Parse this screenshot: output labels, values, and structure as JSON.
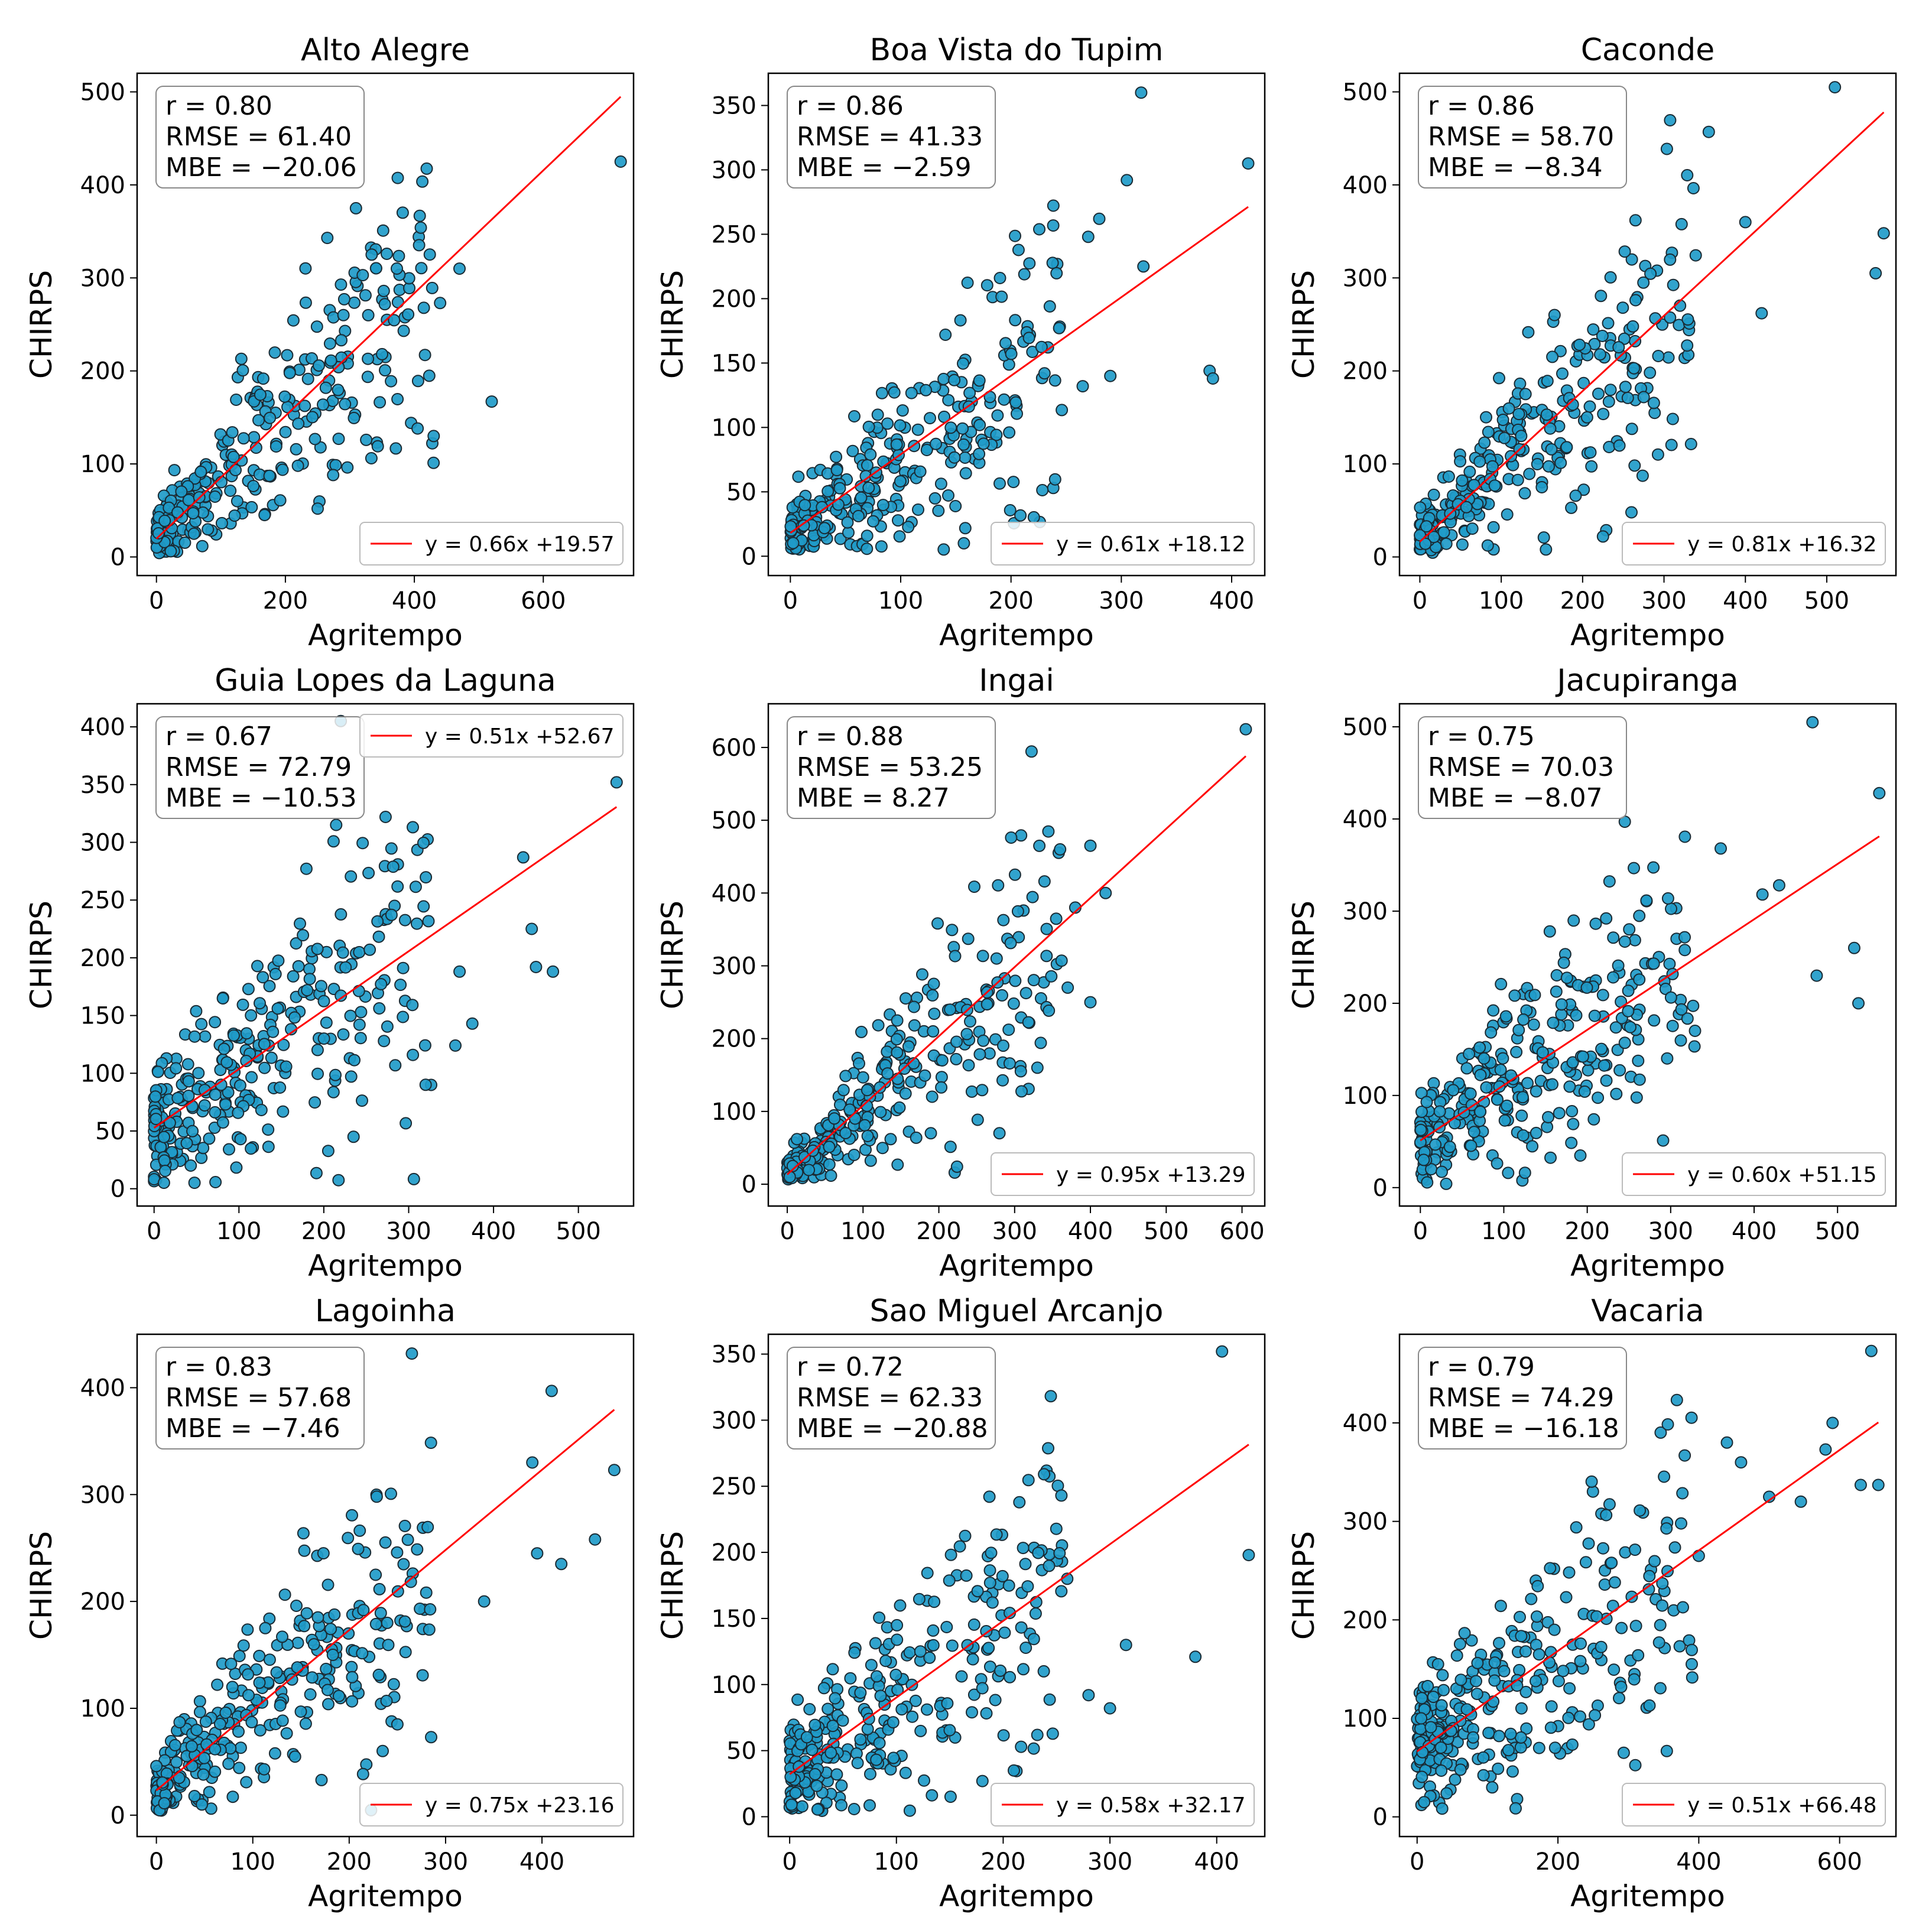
{
  "figure": {
    "xlabel": "Agritempo",
    "ylabel": "CHIRPS",
    "colors": {
      "point": "#1f9bc9",
      "point_edge": "#1a2a33",
      "line": "#ff0000"
    }
  },
  "chart_data": [
    {
      "type": "scatter",
      "title": "Alto Alegre",
      "xlim": [
        -30,
        740
      ],
      "ylim": [
        -20,
        520
      ],
      "xticks": [
        0,
        200,
        400,
        600
      ],
      "yticks": [
        0,
        100,
        200,
        300,
        400,
        500
      ],
      "stats": [
        "r = 0.80",
        "RMSE = 61.40",
        "MBE = −20.06"
      ],
      "fit": {
        "slope": 0.66,
        "intercept": 19.57,
        "x_range": [
          0,
          720
        ],
        "label": "y = 0.66x +19.57"
      },
      "legend": "bottom-right",
      "outliers": [
        [
          720,
          425
        ],
        [
          520,
          167
        ],
        [
          470,
          310
        ],
        [
          440,
          273
        ],
        [
          410,
          354
        ],
        [
          350,
          218
        ],
        [
          320,
          303
        ],
        [
          290,
          260
        ],
        [
          265,
          343
        ],
        [
          250,
          52
        ]
      ]
    },
    {
      "type": "scatter",
      "title": "Boa Vista do Tupim",
      "xlim": [
        -20,
        430
      ],
      "ylim": [
        -15,
        375
      ],
      "xticks": [
        0,
        100,
        200,
        300,
        400
      ],
      "yticks": [
        0,
        50,
        100,
        150,
        200,
        250,
        300,
        350
      ],
      "stats": [
        "r = 0.86",
        "RMSE = 41.33",
        "MBE = −2.59"
      ],
      "fit": {
        "slope": 0.61,
        "intercept": 18.12,
        "x_range": [
          0,
          415
        ],
        "label": "y = 0.61x +18.12"
      },
      "legend": "bottom-right",
      "outliers": [
        [
          318,
          360
        ],
        [
          415,
          305
        ],
        [
          305,
          292
        ],
        [
          280,
          262
        ],
        [
          270,
          248
        ],
        [
          320,
          225
        ],
        [
          190,
          216
        ],
        [
          380,
          144
        ],
        [
          383,
          138
        ],
        [
          290,
          140
        ],
        [
          265,
          132
        ]
      ]
    },
    {
      "type": "scatter",
      "title": "Caconde",
      "xlim": [
        -25,
        585
      ],
      "ylim": [
        -20,
        520
      ],
      "xticks": [
        0,
        100,
        200,
        300,
        400,
        500
      ],
      "yticks": [
        0,
        100,
        200,
        300,
        400,
        500
      ],
      "stats": [
        "r = 0.86",
        "RMSE = 58.70",
        "MBE = −8.34"
      ],
      "fit": {
        "slope": 0.81,
        "intercept": 16.32,
        "x_range": [
          0,
          570
        ],
        "label": "y = 0.81x +16.32"
      },
      "legend": "bottom-right",
      "outliers": [
        [
          510,
          505
        ],
        [
          570,
          348
        ],
        [
          560,
          305
        ],
        [
          355,
          457
        ],
        [
          400,
          360
        ],
        [
          420,
          262
        ],
        [
          225,
          22
        ],
        [
          260,
          48
        ]
      ]
    },
    {
      "type": "scatter",
      "title": "Guia Lopes da Laguna",
      "xlim": [
        -20,
        565
      ],
      "ylim": [
        -15,
        420
      ],
      "xticks": [
        0,
        100,
        200,
        300,
        400,
        500
      ],
      "yticks": [
        0,
        50,
        100,
        150,
        200,
        250,
        300,
        350,
        400
      ],
      "stats": [
        "r = 0.67",
        "RMSE = 72.79",
        "MBE = −10.53"
      ],
      "fit": {
        "slope": 0.51,
        "intercept": 52.67,
        "x_range": [
          0,
          545
        ],
        "label": "y = 0.51x +52.67"
      },
      "legend": "top-right",
      "outliers": [
        [
          220,
          405
        ],
        [
          545,
          352
        ],
        [
          435,
          287
        ],
        [
          445,
          225
        ],
        [
          450,
          192
        ],
        [
          470,
          188
        ],
        [
          375,
          143
        ],
        [
          355,
          124
        ],
        [
          360,
          188
        ],
        [
          320,
          90
        ],
        [
          235,
          45
        ]
      ]
    },
    {
      "type": "scatter",
      "title": "Ingai",
      "xlim": [
        -25,
        630
      ],
      "ylim": [
        -30,
        660
      ],
      "xticks": [
        0,
        100,
        200,
        300,
        400,
        500,
        600
      ],
      "yticks": [
        0,
        100,
        200,
        300,
        400,
        500,
        600
      ],
      "stats": [
        "r = 0.88",
        "RMSE = 53.25",
        "MBE = 8.27"
      ],
      "fit": {
        "slope": 0.95,
        "intercept": 13.29,
        "x_range": [
          0,
          605
        ],
        "label": "y = 0.95x +13.29"
      },
      "legend": "bottom-right",
      "outliers": [
        [
          605,
          625
        ],
        [
          400,
          465
        ],
        [
          420,
          400
        ],
        [
          360,
          460
        ],
        [
          380,
          380
        ],
        [
          400,
          250
        ],
        [
          370,
          270
        ],
        [
          280,
          70
        ],
        [
          330,
          160
        ]
      ]
    },
    {
      "type": "scatter",
      "title": "Jacupiranga",
      "xlim": [
        -25,
        570
      ],
      "ylim": [
        -20,
        525
      ],
      "xticks": [
        0,
        100,
        200,
        300,
        400,
        500
      ],
      "yticks": [
        0,
        100,
        200,
        300,
        400,
        500
      ],
      "stats": [
        "r = 0.75",
        "RMSE = 70.03",
        "MBE = −8.07"
      ],
      "fit": {
        "slope": 0.6,
        "intercept": 51.15,
        "x_range": [
          0,
          550
        ],
        "label": "y = 0.60x +51.15"
      },
      "legend": "bottom-right",
      "outliers": [
        [
          470,
          505
        ],
        [
          550,
          428
        ],
        [
          520,
          260
        ],
        [
          525,
          200
        ],
        [
          475,
          230
        ],
        [
          430,
          328
        ],
        [
          360,
          368
        ],
        [
          245,
          397
        ],
        [
          410,
          318
        ]
      ]
    },
    {
      "type": "scatter",
      "title": "Lagoinha",
      "xlim": [
        -20,
        495
      ],
      "ylim": [
        -20,
        450
      ],
      "xticks": [
        0,
        100,
        200,
        300,
        400
      ],
      "yticks": [
        0,
        100,
        200,
        300,
        400
      ],
      "stats": [
        "r = 0.83",
        "RMSE = 57.68",
        "MBE = −7.46"
      ],
      "fit": {
        "slope": 0.75,
        "intercept": 23.16,
        "x_range": [
          0,
          475
        ],
        "label": "y = 0.75x +23.16"
      },
      "legend": "bottom-right",
      "outliers": [
        [
          265,
          432
        ],
        [
          410,
          397
        ],
        [
          475,
          323
        ],
        [
          390,
          330
        ],
        [
          455,
          258
        ],
        [
          420,
          235
        ],
        [
          395,
          245
        ],
        [
          340,
          200
        ],
        [
          285,
          73
        ],
        [
          250,
          85
        ]
      ]
    },
    {
      "type": "scatter",
      "title": "Sao Miguel Arcanjo",
      "xlim": [
        -20,
        445
      ],
      "ylim": [
        -15,
        365
      ],
      "xticks": [
        0,
        100,
        200,
        300,
        400
      ],
      "yticks": [
        0,
        50,
        100,
        150,
        200,
        250,
        300,
        350
      ],
      "stats": [
        "r = 0.72",
        "RMSE = 62.33",
        "MBE = −20.88"
      ],
      "fit": {
        "slope": 0.58,
        "intercept": 32.17,
        "x_range": [
          0,
          430
        ],
        "label": "y = 0.58x +32.17"
      },
      "legend": "bottom-right",
      "outliers": [
        [
          405,
          352
        ],
        [
          430,
          198
        ],
        [
          380,
          121
        ],
        [
          315,
          130
        ],
        [
          300,
          82
        ],
        [
          280,
          92
        ],
        [
          260,
          180
        ],
        [
          210,
          35
        ]
      ]
    },
    {
      "type": "scatter",
      "title": "Vacaria",
      "xlim": [
        -25,
        680
      ],
      "ylim": [
        -20,
        490
      ],
      "xticks": [
        0,
        200,
        400,
        600
      ],
      "yticks": [
        0,
        100,
        200,
        300,
        400
      ],
      "stats": [
        "r = 0.79",
        "RMSE = 74.29",
        "MBE = −16.18"
      ],
      "fit": {
        "slope": 0.51,
        "intercept": 66.48,
        "x_range": [
          0,
          655
        ],
        "label": "y = 0.51x +66.48"
      },
      "legend": "bottom-right",
      "outliers": [
        [
          645,
          473
        ],
        [
          655,
          337
        ],
        [
          630,
          337
        ],
        [
          590,
          400
        ],
        [
          580,
          373
        ],
        [
          545,
          320
        ],
        [
          500,
          325
        ],
        [
          460,
          360
        ],
        [
          440,
          380
        ],
        [
          400,
          265
        ],
        [
          390,
          155
        ],
        [
          330,
          113
        ],
        [
          10,
          15
        ]
      ]
    }
  ]
}
